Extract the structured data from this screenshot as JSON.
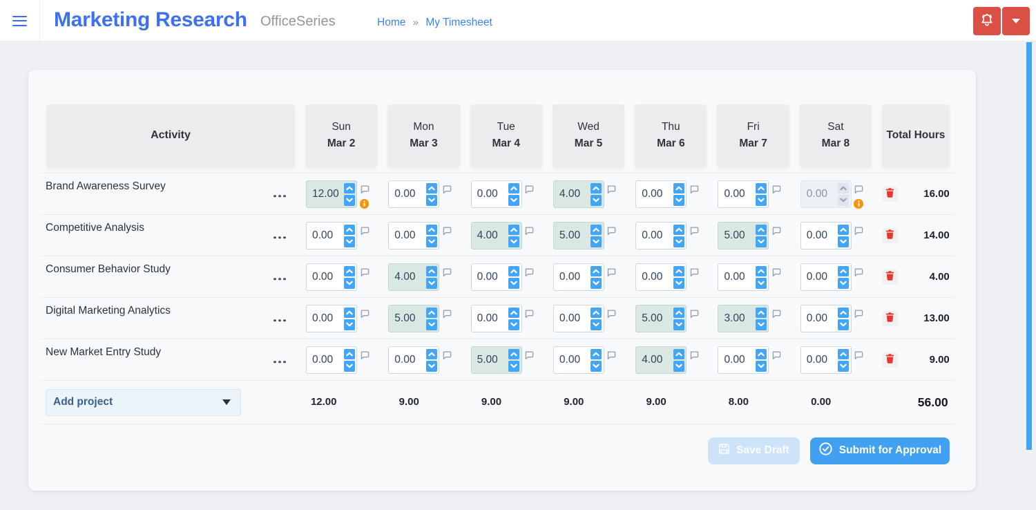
{
  "header": {
    "title": "Marketing Research",
    "subtitle": "OfficeSeries",
    "breadcrumb": {
      "home": "Home",
      "separator": "»",
      "current": "My Timesheet"
    }
  },
  "colors": {
    "accent_blue": "#42a5f5",
    "title_blue": "#3e70f2",
    "danger_red": "#dc4f44",
    "trash_red": "#e5372e",
    "warn_orange": "#f9930a",
    "highlight_teal": "#d9e8e2"
  },
  "table": {
    "activity_header": "Activity",
    "total_header": "Total Hours",
    "days": [
      {
        "day": "Sun",
        "date": "Mar 2"
      },
      {
        "day": "Mon",
        "date": "Mar 3"
      },
      {
        "day": "Tue",
        "date": "Mar 4"
      },
      {
        "day": "Wed",
        "date": "Mar 5"
      },
      {
        "day": "Thu",
        "date": "Mar 6"
      },
      {
        "day": "Fri",
        "date": "Mar 7"
      },
      {
        "day": "Sat",
        "date": "Mar 8"
      }
    ],
    "rows": [
      {
        "name": "Brand Awareness Survey",
        "cells": [
          {
            "v": "12.00",
            "hl": true,
            "warn": true
          },
          {
            "v": "0.00"
          },
          {
            "v": "0.00"
          },
          {
            "v": "4.00",
            "hl": true
          },
          {
            "v": "0.00"
          },
          {
            "v": "0.00"
          },
          {
            "v": "0.00",
            "disabled": true,
            "warn": true
          }
        ],
        "total": "16.00"
      },
      {
        "name": "Competitive Analysis",
        "cells": [
          {
            "v": "0.00"
          },
          {
            "v": "0.00"
          },
          {
            "v": "4.00",
            "hl": true
          },
          {
            "v": "5.00",
            "hl": true
          },
          {
            "v": "0.00"
          },
          {
            "v": "5.00",
            "hl": true
          },
          {
            "v": "0.00"
          }
        ],
        "total": "14.00"
      },
      {
        "name": "Consumer Behavior Study",
        "cells": [
          {
            "v": "0.00"
          },
          {
            "v": "4.00",
            "hl": true
          },
          {
            "v": "0.00"
          },
          {
            "v": "0.00"
          },
          {
            "v": "0.00"
          },
          {
            "v": "0.00"
          },
          {
            "v": "0.00"
          }
        ],
        "total": "4.00"
      },
      {
        "name": "Digital Marketing Analytics",
        "cells": [
          {
            "v": "0.00"
          },
          {
            "v": "5.00",
            "hl": true
          },
          {
            "v": "0.00"
          },
          {
            "v": "0.00"
          },
          {
            "v": "5.00",
            "hl": true
          },
          {
            "v": "3.00",
            "hl": true
          },
          {
            "v": "0.00"
          }
        ],
        "total": "13.00"
      },
      {
        "name": "New Market Entry Study",
        "cells": [
          {
            "v": "0.00"
          },
          {
            "v": "0.00"
          },
          {
            "v": "5.00",
            "hl": true
          },
          {
            "v": "0.00"
          },
          {
            "v": "4.00",
            "hl": true
          },
          {
            "v": "0.00"
          },
          {
            "v": "0.00"
          }
        ],
        "total": "9.00"
      }
    ],
    "footer": {
      "add_project_label": "Add project",
      "day_totals": [
        "12.00",
        "9.00",
        "9.00",
        "9.00",
        "9.00",
        "8.00",
        "0.00"
      ],
      "grand_total": "56.00"
    }
  },
  "actions": {
    "save_label": "Save Draft",
    "submit_label": "Submit for Approval"
  }
}
